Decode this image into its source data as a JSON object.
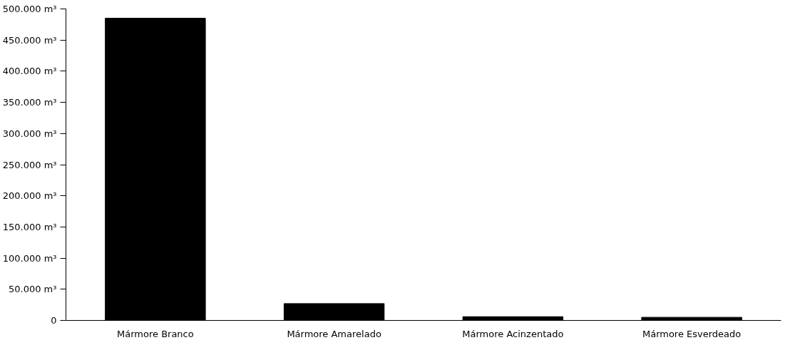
{
  "chart_data": {
    "type": "bar",
    "categories": [
      "Mármore Branco",
      "Mármore Amarelado",
      "Mármore Acinzentado",
      "Mármore Esverdeado"
    ],
    "values": [
      485000,
      27000,
      6000,
      5000
    ],
    "color": "#000000",
    "ylim": [
      0,
      500000
    ],
    "yticks": [
      {
        "value": 0,
        "label": "0"
      },
      {
        "value": 50000,
        "label": "50.000 m³"
      },
      {
        "value": 100000,
        "label": "100.000 m³"
      },
      {
        "value": 150000,
        "label": "150.000 m³"
      },
      {
        "value": 200000,
        "label": "200.000 m³"
      },
      {
        "value": 250000,
        "label": "250.000 m³"
      },
      {
        "value": 300000,
        "label": "300.000 m³"
      },
      {
        "value": 350000,
        "label": "350.000 m³"
      },
      {
        "value": 400000,
        "label": "400.000 m³"
      },
      {
        "value": 450000,
        "label": "450.000 m³"
      },
      {
        "value": 500000,
        "label": "500.000 m³"
      }
    ],
    "grid": false
  }
}
